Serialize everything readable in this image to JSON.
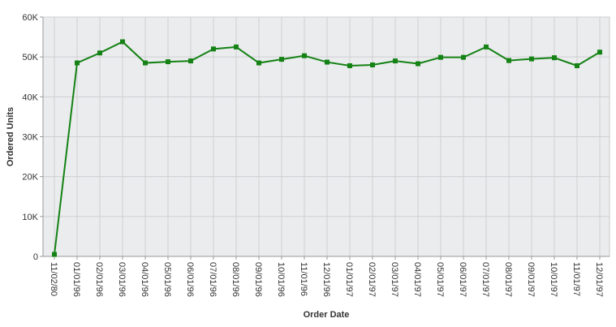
{
  "chart_data": {
    "type": "line",
    "xlabel": "Order Date",
    "ylabel": "Ordered Units",
    "ylim": [
      0,
      60000
    ],
    "y_ticks": [
      0,
      10000,
      20000,
      30000,
      40000,
      50000,
      60000
    ],
    "y_tick_labels": [
      "0",
      "10K",
      "20K",
      "30K",
      "40K",
      "50K",
      "60K"
    ],
    "categories": [
      "11/02/80",
      "01/01/96",
      "02/01/96",
      "03/01/96",
      "04/01/96",
      "05/01/96",
      "06/01/96",
      "07/01/96",
      "08/01/96",
      "09/01/96",
      "10/01/96",
      "11/01/96",
      "12/01/96",
      "01/01/97",
      "02/01/97",
      "03/01/97",
      "04/01/97",
      "05/01/97",
      "06/01/97",
      "07/01/97",
      "08/01/97",
      "09/01/97",
      "10/01/97",
      "11/01/97",
      "12/01/97"
    ],
    "series": [
      {
        "values": [
          500,
          48500,
          51000,
          53800,
          48500,
          48800,
          49000,
          52000,
          52500,
          48500,
          49400,
          50300,
          48700,
          47800,
          48000,
          49000,
          48300,
          49900,
          49900,
          52500,
          49100,
          49500,
          49800,
          47800,
          51200
        ]
      }
    ],
    "colors": {
      "line": "#148214",
      "marker": "#148214",
      "plot_background": "#ebecee",
      "grid": "#cfcfd2"
    },
    "grid": true,
    "legend": "none"
  }
}
